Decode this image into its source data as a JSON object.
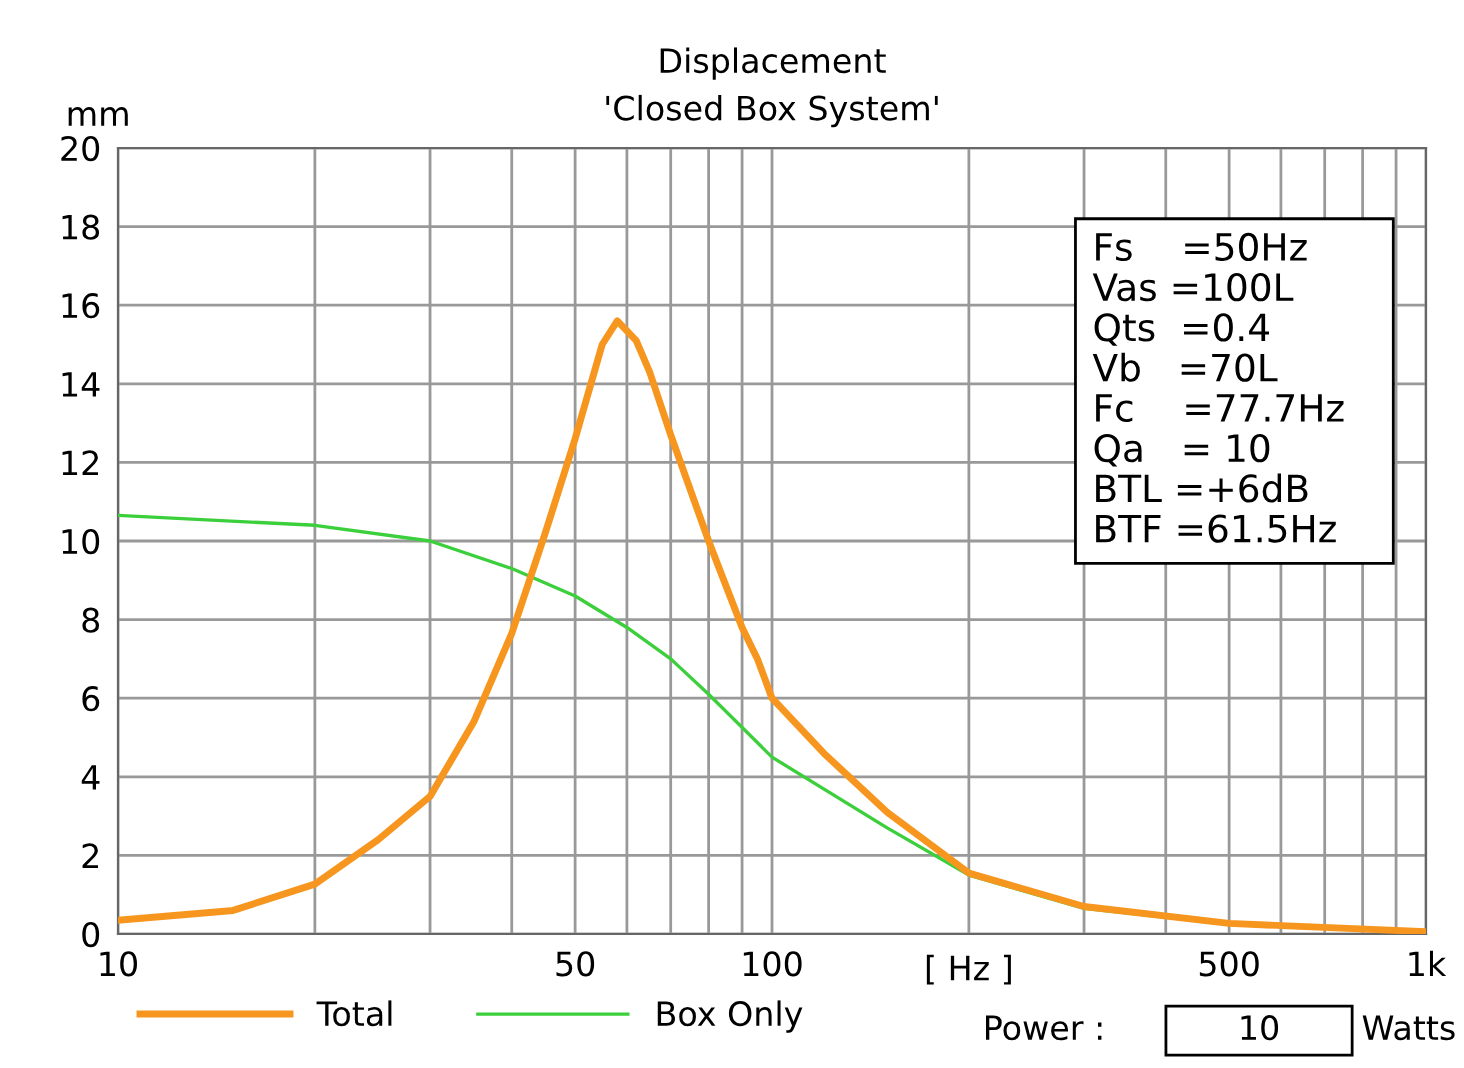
{
  "chart_data": {
    "type": "line",
    "title": "Displacement",
    "subtitle": "'Closed Box System'",
    "xlabel": "[ Hz ]",
    "ylabel": "mm",
    "log": "x",
    "xlim": [
      10,
      1000
    ],
    "ylim": [
      0,
      20
    ],
    "xticks": [
      10,
      {
        "value": 20,
        "label": null
      },
      {
        "value": 30,
        "label": null
      },
      {
        "value": 40,
        "label": null
      },
      50,
      {
        "value": 60,
        "label": null
      },
      {
        "value": 70,
        "label": null
      },
      {
        "value": 80,
        "label": null
      },
      {
        "value": 90,
        "label": null
      },
      100,
      {
        "value": 200,
        "label": null
      },
      {
        "value": 300,
        "label": null
      },
      {
        "value": 400,
        "label": null
      },
      500,
      {
        "value": 600,
        "label": null
      },
      {
        "value": 700,
        "label": null
      },
      {
        "value": 800,
        "label": null
      },
      {
        "value": 900,
        "label": null
      },
      {
        "value": 1000,
        "label": "1k"
      }
    ],
    "yticks": [
      0,
      2,
      4,
      6,
      8,
      10,
      12,
      14,
      16,
      18,
      20
    ],
    "grid": true,
    "legend": "bottom left",
    "marker": "none",
    "line_style": "solid",
    "series": [
      {
        "name": "Total",
        "color": "#f7961e",
        "x": [
          10,
          15,
          20,
          25,
          30,
          35,
          40,
          45,
          50,
          55,
          58,
          62,
          65,
          70,
          80,
          90,
          95,
          100,
          120,
          150,
          200,
          300,
          500,
          1000
        ],
        "values": [
          0.35,
          0.6,
          1.27,
          2.4,
          3.5,
          5.4,
          7.65,
          10.2,
          12.6,
          15.0,
          15.6,
          15.1,
          14.3,
          12.7,
          10.0,
          7.8,
          7.0,
          6.0,
          4.6,
          3.1,
          1.55,
          0.7,
          0.27,
          0.06
        ]
      },
      {
        "name": "Box Only",
        "color": "#3ccf3c",
        "x": [
          10,
          20,
          30,
          40,
          50,
          60,
          70,
          80,
          100,
          150,
          200,
          300,
          500
        ],
        "values": [
          10.65,
          10.4,
          10.0,
          9.3,
          8.6,
          7.8,
          7.0,
          6.1,
          4.5,
          2.7,
          1.5,
          0.65,
          0.25
        ]
      }
    ],
    "annotations": [
      "Fs    =50Hz",
      "Vas =100L",
      "Qts  =0.4",
      "Vb   =70L",
      "Fc    =77.7Hz",
      "Qa   = 10",
      "BTL =+6dB",
      "BTF =61.5Hz",
      "Power :",
      "10",
      "Watts"
    ]
  }
}
